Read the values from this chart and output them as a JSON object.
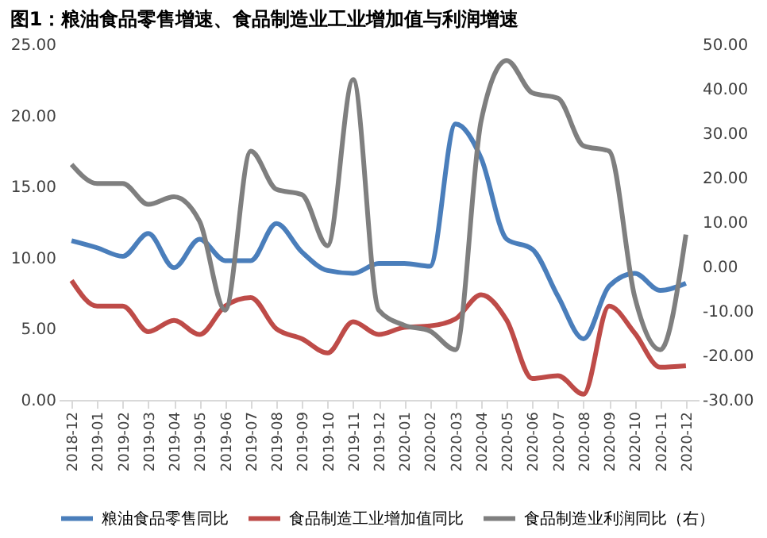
{
  "chart_data": {
    "type": "line",
    "title": "图1：粮油食品零售增速、食品制造业工业增加值与利润增速",
    "categories": [
      "2018-12",
      "2019-01",
      "2019-02",
      "2019-03",
      "2019-04",
      "2019-05",
      "2019-06",
      "2019-07",
      "2019-08",
      "2019-09",
      "2019-10",
      "2019-11",
      "2019-12",
      "2020-01",
      "2020-02",
      "2020-03",
      "2020-04",
      "2020-05",
      "2020-06",
      "2020-07",
      "2020-08",
      "2020-09",
      "2020-10",
      "2020-11",
      "2020-12"
    ],
    "series": [
      {
        "name": "粮油食品零售同比",
        "color": "#4a7ebb",
        "values": [
          11.2,
          10.7,
          10.1,
          11.7,
          9.3,
          11.3,
          9.8,
          9.8,
          12.4,
          10.4,
          9.1,
          8.9,
          9.6,
          9.6,
          9.4,
          19.4,
          17.0,
          11.3,
          10.6,
          7.3,
          4.3,
          8.0,
          8.9,
          7.7,
          8.2
        ]
      },
      {
        "name": "食品制造工业增加值同比",
        "color": "#be4b48",
        "values": [
          8.4,
          6.6,
          6.6,
          4.8,
          5.6,
          4.6,
          6.6,
          7.2,
          5.0,
          4.3,
          3.3,
          5.5,
          4.6,
          5.1,
          5.2,
          5.7,
          7.4,
          5.6,
          1.5,
          1.7,
          0.4,
          6.6,
          4.7,
          2.3,
          2.4
        ]
      },
      {
        "name": "食品制造业利润同比（右）",
        "color": "#7f7f7f",
        "axis": "y2",
        "values": [
          23.0,
          18.7,
          18.7,
          14.0,
          15.7,
          10.2,
          -9.8,
          26.0,
          17.4,
          16.2,
          4.7,
          42.1,
          -9.8,
          -13.2,
          -14.5,
          -18.7,
          32.8,
          46.4,
          39.1,
          37.9,
          27.2,
          26.0,
          -6.8,
          -18.7,
          7.2
        ]
      }
    ],
    "ylim": [
      0,
      25
    ],
    "yticks": [
      {
        "value": 0,
        "label": "0.00"
      },
      {
        "value": 5,
        "label": "5.00"
      },
      {
        "value": 10,
        "label": "10.00"
      },
      {
        "value": 15,
        "label": "15.00"
      },
      {
        "value": 20,
        "label": "20.00"
      },
      {
        "value": 25,
        "label": "25.00"
      }
    ],
    "y2lim": [
      -30,
      50
    ],
    "y2ticks": [
      {
        "value": -30,
        "label": "-30.00"
      },
      {
        "value": -20,
        "label": "-20.00"
      },
      {
        "value": -10,
        "label": "-10.00"
      },
      {
        "value": 0,
        "label": "0.00"
      },
      {
        "value": 10,
        "label": "10.00"
      },
      {
        "value": 20,
        "label": "20.00"
      },
      {
        "value": 30,
        "label": "30.00"
      },
      {
        "value": 40,
        "label": "40.00"
      },
      {
        "value": 50,
        "label": "50.00"
      }
    ],
    "grid": false,
    "legend": "bottom",
    "marker": "none",
    "line_style": "solid"
  }
}
